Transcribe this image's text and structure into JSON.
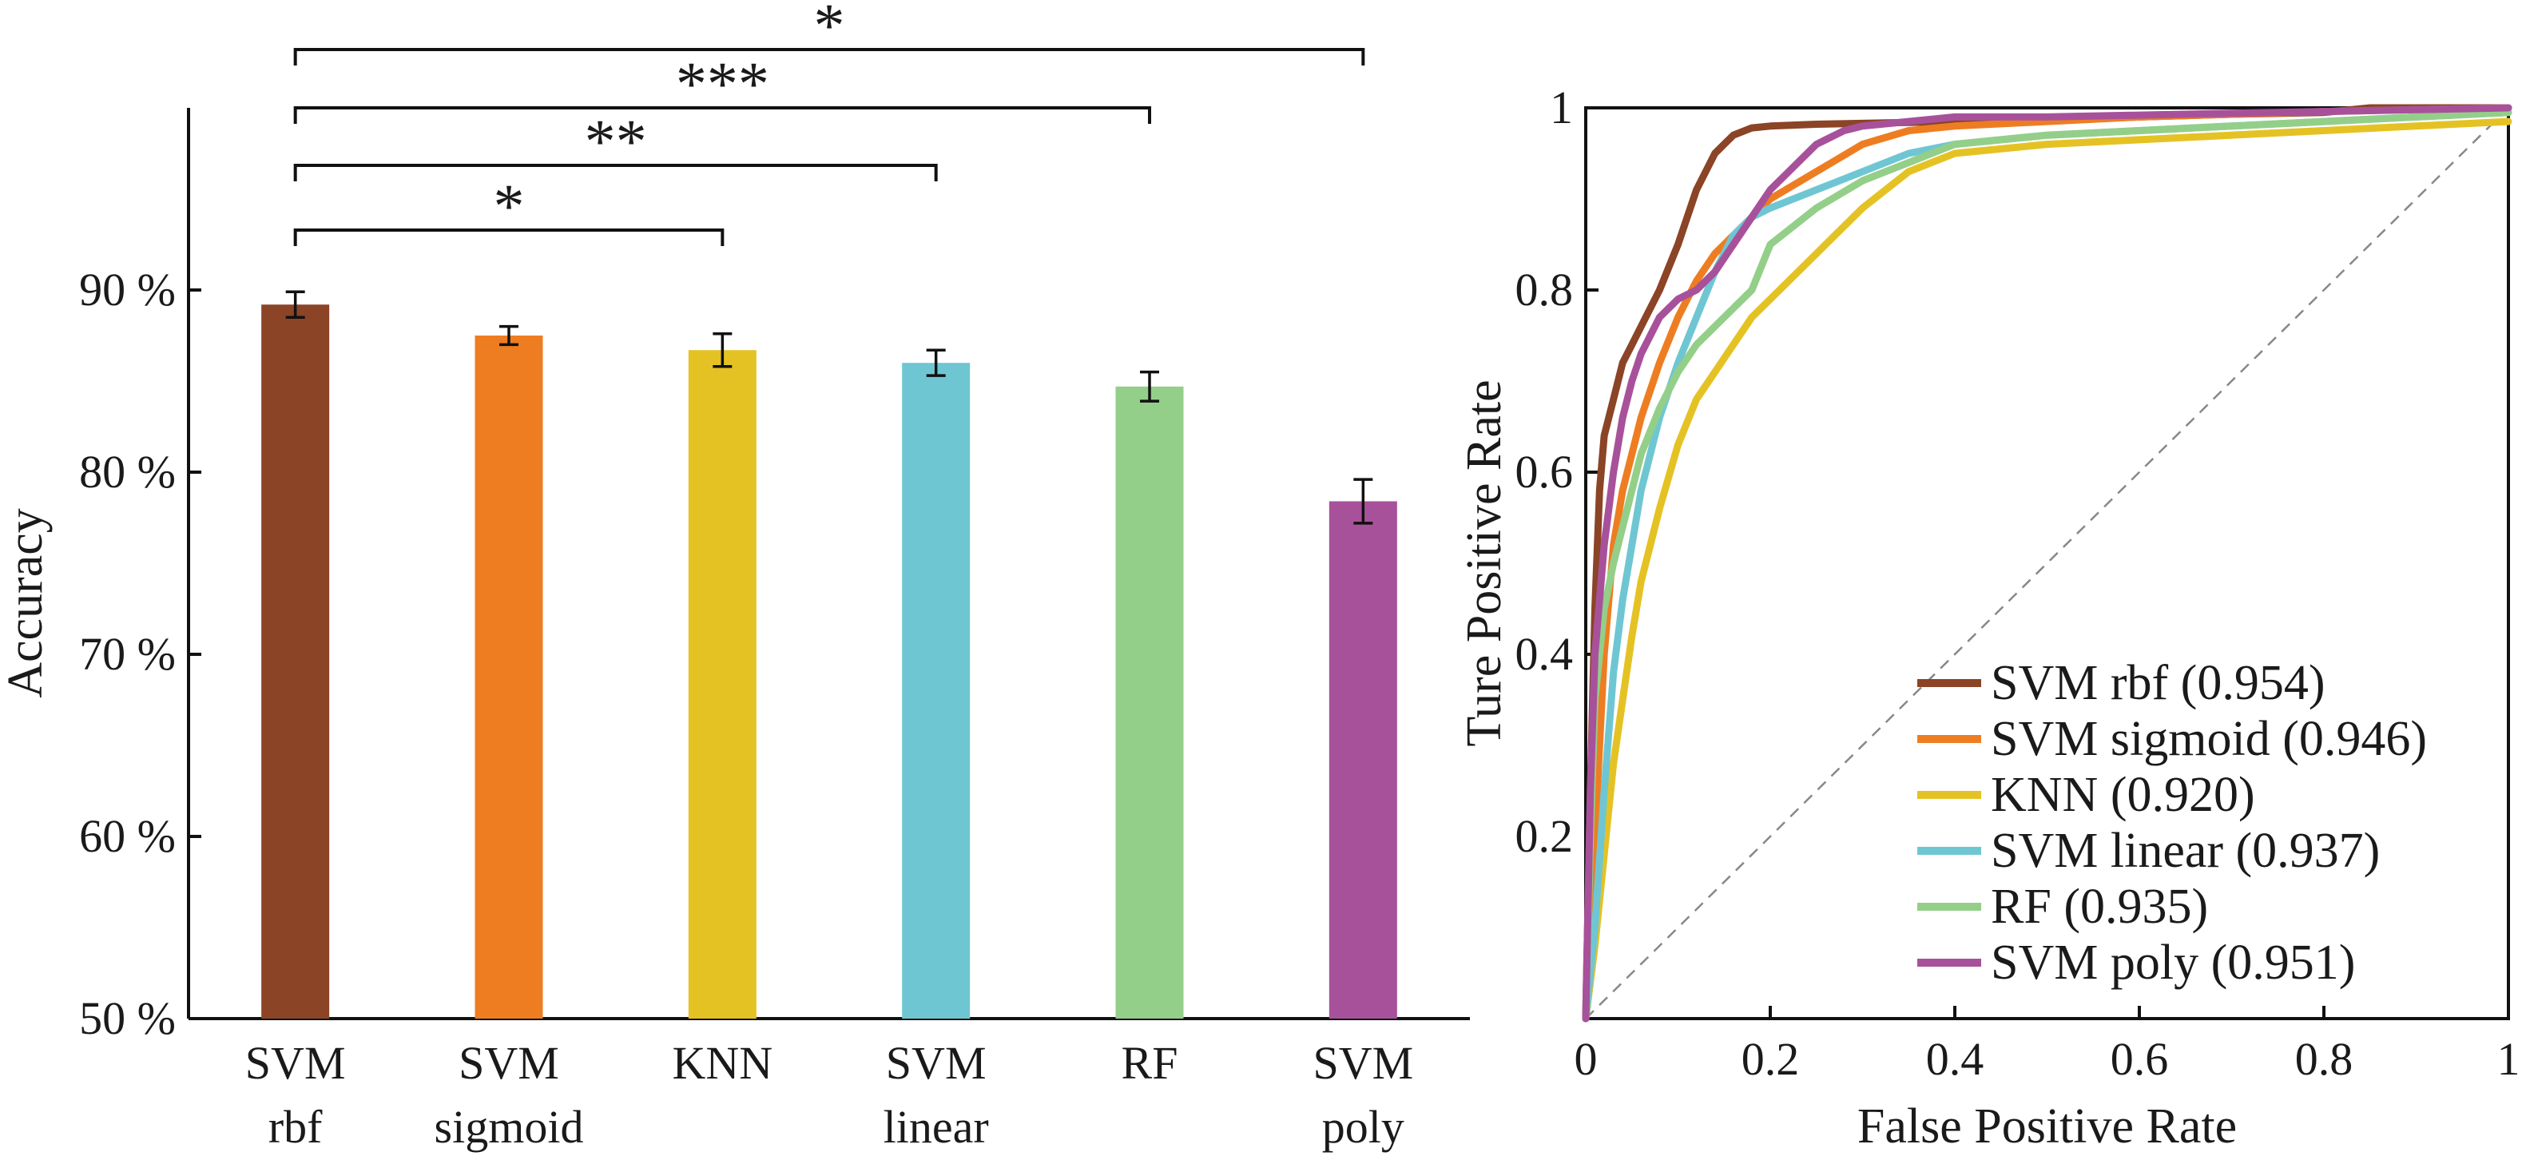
{
  "chart_data": [
    {
      "type": "bar",
      "ylabel": "Accuracy",
      "ylim": [
        50,
        100
      ],
      "yticks": [
        {
          "value": 50,
          "label": "50 %"
        },
        {
          "value": 60,
          "label": "60 %"
        },
        {
          "value": 70,
          "label": "70 %"
        },
        {
          "value": 80,
          "label": "80 %"
        },
        {
          "value": 90,
          "label": "90 %"
        }
      ],
      "categories": [
        {
          "line1": "SVM",
          "line2": "rbf"
        },
        {
          "line1": "SVM",
          "line2": "sigmoid"
        },
        {
          "line1": "KNN",
          "line2": ""
        },
        {
          "line1": "SVM",
          "line2": "linear"
        },
        {
          "line1": "RF",
          "line2": ""
        },
        {
          "line1": "SVM",
          "line2": "poly"
        }
      ],
      "values": [
        89.2,
        87.5,
        86.7,
        86.0,
        84.7,
        78.4
      ],
      "errors": [
        0.7,
        0.5,
        0.9,
        0.7,
        0.8,
        1.2
      ],
      "colors": [
        "#8b4426",
        "#ee7d22",
        "#e5c224",
        "#6fc6d3",
        "#93cf89",
        "#a8519b"
      ],
      "significance": [
        {
          "from": 0,
          "to": 5,
          "label": "*"
        },
        {
          "from": 0,
          "to": 4,
          "label": "***"
        },
        {
          "from": 0,
          "to": 3,
          "label": "**"
        },
        {
          "from": 0,
          "to": 2,
          "label": "*"
        }
      ]
    },
    {
      "type": "line",
      "xlabel": "False Positive Rate",
      "ylabel": "Ture Positive Rate",
      "xlim": [
        0,
        1
      ],
      "ylim": [
        0,
        1
      ],
      "xticks": [
        {
          "value": 0,
          "label": "0"
        },
        {
          "value": 0.2,
          "label": "0.2"
        },
        {
          "value": 0.4,
          "label": "0.4"
        },
        {
          "value": 0.6,
          "label": "0.6"
        },
        {
          "value": 0.8,
          "label": "0.8"
        },
        {
          "value": 1,
          "label": "1"
        }
      ],
      "yticks": [
        {
          "value": 0.2,
          "label": "0.2"
        },
        {
          "value": 0.4,
          "label": "0.4"
        },
        {
          "value": 0.6,
          "label": "0.6"
        },
        {
          "value": 0.8,
          "label": "0.8"
        },
        {
          "value": 1,
          "label": "1"
        }
      ],
      "legend_position": "bottom-right",
      "series": [
        {
          "name": "SVM rbf (0.954)",
          "color": "#8b4426",
          "x": [
            0,
            0.005,
            0.01,
            0.015,
            0.02,
            0.03,
            0.04,
            0.05,
            0.06,
            0.08,
            0.1,
            0.12,
            0.14,
            0.16,
            0.18,
            0.2,
            0.25,
            0.3,
            0.4,
            0.5,
            0.6,
            0.7,
            0.8,
            0.85,
            1.0
          ],
          "y": [
            0,
            0.25,
            0.45,
            0.58,
            0.64,
            0.68,
            0.72,
            0.74,
            0.76,
            0.8,
            0.85,
            0.91,
            0.95,
            0.97,
            0.978,
            0.98,
            0.982,
            0.983,
            0.985,
            0.987,
            0.99,
            0.993,
            0.995,
            1.0,
            1.0
          ]
        },
        {
          "name": "SVM sigmoid (0.946)",
          "color": "#ee7d22",
          "x": [
            0,
            0.005,
            0.01,
            0.02,
            0.03,
            0.04,
            0.05,
            0.06,
            0.08,
            0.1,
            0.12,
            0.14,
            0.16,
            0.18,
            0.2,
            0.25,
            0.3,
            0.35,
            0.4,
            0.5,
            0.6,
            0.7,
            0.8,
            0.9,
            1.0
          ],
          "y": [
            0,
            0.05,
            0.2,
            0.4,
            0.52,
            0.58,
            0.62,
            0.66,
            0.72,
            0.77,
            0.81,
            0.84,
            0.86,
            0.88,
            0.9,
            0.93,
            0.96,
            0.975,
            0.98,
            0.985,
            0.99,
            0.993,
            0.996,
            0.998,
            1.0
          ]
        },
        {
          "name": "KNN (0.920)",
          "color": "#e5c224",
          "x": [
            0,
            0.01,
            0.02,
            0.03,
            0.04,
            0.05,
            0.06,
            0.08,
            0.1,
            0.12,
            0.14,
            0.16,
            0.18,
            0.2,
            0.25,
            0.3,
            0.35,
            0.4,
            0.5,
            0.6,
            0.7,
            0.8,
            0.9,
            1.0
          ],
          "y": [
            0,
            0.08,
            0.18,
            0.28,
            0.35,
            0.42,
            0.48,
            0.56,
            0.63,
            0.68,
            0.71,
            0.74,
            0.77,
            0.79,
            0.84,
            0.89,
            0.93,
            0.95,
            0.96,
            0.965,
            0.97,
            0.975,
            0.98,
            0.985
          ]
        },
        {
          "name": "SVM linear (0.937)",
          "color": "#6fc6d3",
          "x": [
            0,
            0.01,
            0.02,
            0.03,
            0.04,
            0.05,
            0.06,
            0.08,
            0.1,
            0.12,
            0.14,
            0.16,
            0.18,
            0.2,
            0.25,
            0.3,
            0.35,
            0.4,
            0.5,
            0.6,
            0.7,
            0.8,
            0.9,
            1.0
          ],
          "y": [
            0,
            0.1,
            0.25,
            0.38,
            0.46,
            0.52,
            0.58,
            0.66,
            0.72,
            0.77,
            0.82,
            0.86,
            0.88,
            0.89,
            0.91,
            0.93,
            0.95,
            0.96,
            0.97,
            0.975,
            0.98,
            0.985,
            0.99,
            0.995
          ]
        },
        {
          "name": "RF (0.935)",
          "color": "#93cf89",
          "x": [
            0,
            0.005,
            0.01,
            0.02,
            0.03,
            0.04,
            0.05,
            0.06,
            0.08,
            0.1,
            0.12,
            0.14,
            0.16,
            0.18,
            0.2,
            0.25,
            0.3,
            0.35,
            0.4,
            0.5,
            0.6,
            0.7,
            0.8,
            0.9,
            1.0
          ],
          "y": [
            0,
            0.2,
            0.35,
            0.45,
            0.5,
            0.54,
            0.58,
            0.62,
            0.67,
            0.71,
            0.74,
            0.76,
            0.78,
            0.8,
            0.85,
            0.89,
            0.92,
            0.94,
            0.96,
            0.97,
            0.975,
            0.98,
            0.985,
            0.99,
            0.995
          ]
        },
        {
          "name": "SVM poly (0.951)",
          "color": "#a8519b",
          "x": [
            0,
            0.005,
            0.01,
            0.02,
            0.03,
            0.04,
            0.05,
            0.06,
            0.08,
            0.1,
            0.12,
            0.14,
            0.16,
            0.18,
            0.2,
            0.22,
            0.25,
            0.28,
            0.3,
            0.35,
            0.4,
            0.5,
            0.6,
            0.7,
            0.8,
            0.9,
            1.0
          ],
          "y": [
            0,
            0.25,
            0.4,
            0.52,
            0.6,
            0.66,
            0.7,
            0.73,
            0.77,
            0.79,
            0.8,
            0.82,
            0.85,
            0.88,
            0.91,
            0.93,
            0.96,
            0.975,
            0.98,
            0.985,
            0.99,
            0.99,
            0.992,
            0.994,
            0.996,
            0.998,
            1.0
          ]
        }
      ]
    }
  ]
}
